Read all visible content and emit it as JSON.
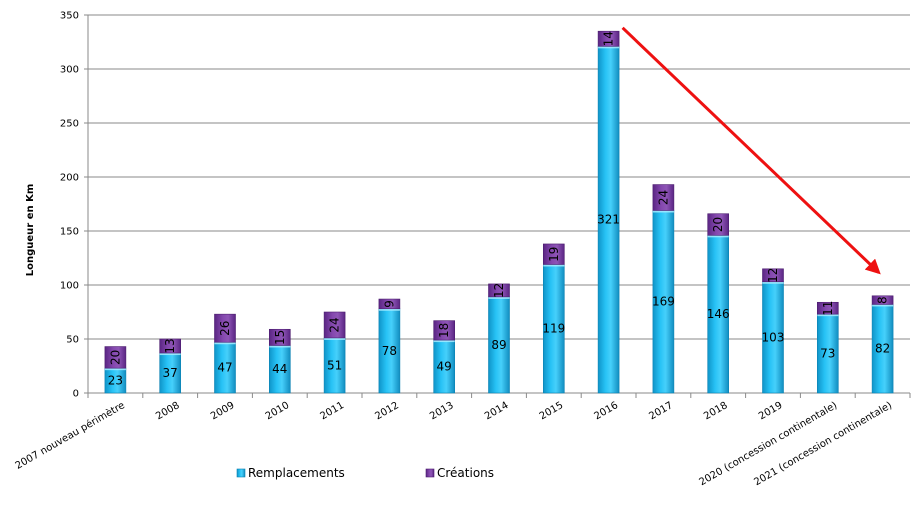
{
  "chart_data": {
    "type": "bar",
    "stacked": true,
    "ylabel": "Longueur en Km",
    "ylim": [
      0,
      350
    ],
    "yticks": [
      0,
      50,
      100,
      150,
      200,
      250,
      300,
      350
    ],
    "grid": true,
    "legend_position": "bottom",
    "categories": [
      "2007 nouveau périmètre",
      "2008",
      "2009",
      "2010",
      "2011",
      "2012",
      "2013",
      "2014",
      "2015",
      "2016",
      "2017",
      "2018",
      "2019",
      "2020 (concession continentale)",
      "2021 (concession continentale)"
    ],
    "series": [
      {
        "name": "Remplacements",
        "color": "#1fb7ee",
        "values": [
          23,
          37,
          47,
          44,
          51,
          78,
          49,
          89,
          119,
          321,
          169,
          146,
          103,
          73,
          82
        ]
      },
      {
        "name": "Créations",
        "color": "#7a3aa1",
        "values": [
          20,
          13,
          26,
          15,
          24,
          9,
          18,
          12,
          19,
          14,
          24,
          20,
          12,
          11,
          8
        ]
      }
    ],
    "annotation": {
      "type": "arrow",
      "color": "#ee1111",
      "from": [
        "2016",
        340
      ],
      "to": [
        "2021 (concession continentale)",
        108
      ]
    }
  }
}
